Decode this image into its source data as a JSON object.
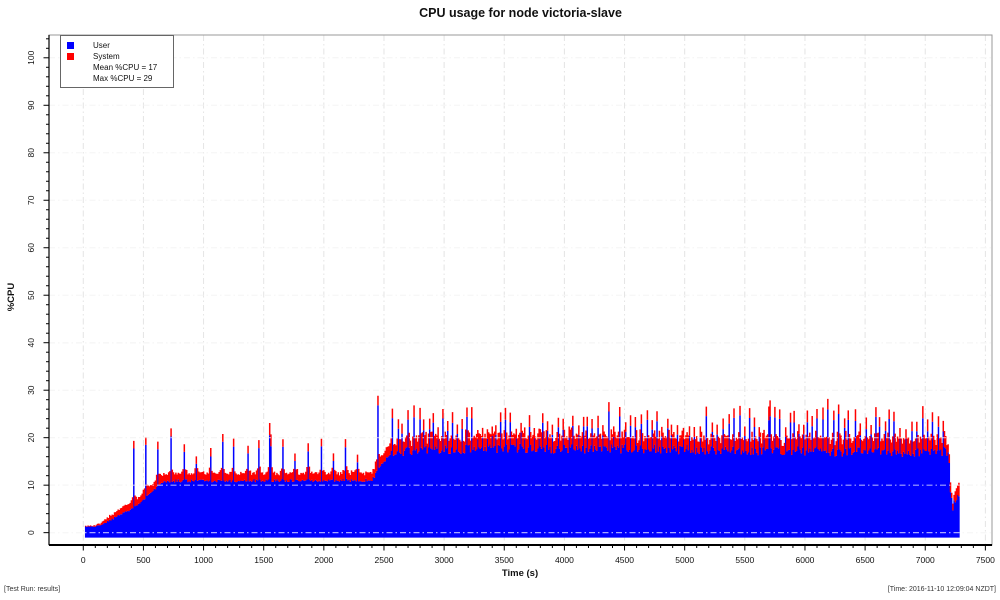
{
  "header": {
    "title": "CPU usage for node victoria-slave"
  },
  "footer": {
    "left": "[Test Run: results]",
    "right": "[Time: 2016-11-10 12:09:04 NZDT]"
  },
  "legend": {
    "items": [
      {
        "label": "User",
        "color": "#0000ff"
      },
      {
        "label": "System",
        "color": "#ff0000"
      }
    ],
    "stats": [
      "Mean %CPU = 17",
      "Max %CPU = 29"
    ]
  },
  "chart_data": {
    "type": "bar",
    "stacked": true,
    "title": "CPU usage for node victoria-slave",
    "xlabel": "Time (s)",
    "ylabel": "%CPU",
    "xlim": [
      -285,
      7555
    ],
    "ylim": [
      -2.6,
      104.8
    ],
    "x_major_ticks": [
      0,
      500,
      1000,
      1500,
      2000,
      2500,
      3000,
      3500,
      4000,
      4500,
      5000,
      5500,
      6000,
      6500,
      7000,
      7500
    ],
    "x_minor_step": 100,
    "y_major_ticks": [
      0,
      10,
      20,
      30,
      40,
      50,
      60,
      70,
      80,
      90,
      100
    ],
    "y_minor_step": 2,
    "y_minor_max": 104,
    "grid": {
      "color": "#e4e4e4",
      "overlay_color": "rgba(255,255,255,0.65)",
      "dash": [
        6,
        3,
        1.5,
        3
      ]
    },
    "series": [
      {
        "name": "User",
        "color": "#0000ff"
      },
      {
        "name": "System",
        "color": "#ff0000"
      }
    ],
    "mean_pct_cpu": 17,
    "max_pct_cpu": 29,
    "sample_interval_s": 10,
    "t_start": 20,
    "t_end": 7280,
    "envelope_points": [
      [
        20,
        1.2,
        0.15
      ],
      [
        120,
        1.4,
        0.2
      ],
      [
        200,
        2.3,
        0.8
      ],
      [
        300,
        3.7,
        1.2
      ],
      [
        400,
        5.0,
        1.4
      ],
      [
        480,
        6.4,
        1.5
      ],
      [
        560,
        8.3,
        1.5
      ],
      [
        630,
        10.0,
        1.6
      ],
      [
        670,
        10.9,
        1.5
      ],
      [
        2400,
        11.0,
        1.6
      ],
      [
        2465,
        13.8,
        1.9
      ],
      [
        2540,
        16.3,
        2.0
      ],
      [
        2750,
        17.3,
        2.0
      ],
      [
        3500,
        17.7,
        2.0
      ],
      [
        4500,
        17.7,
        2.0
      ],
      [
        5500,
        17.3,
        2.0
      ],
      [
        6400,
        17.0,
        2.0
      ],
      [
        6900,
        16.9,
        2.0
      ],
      [
        7195,
        17.2,
        2.0
      ],
      [
        7210,
        9.5,
        1.8
      ],
      [
        7230,
        5.5,
        1.3
      ],
      [
        7255,
        6.5,
        2.2
      ],
      [
        7280,
        7.5,
        2.6
      ]
    ],
    "noise_regions": [
      {
        "t_max": 650,
        "user": 0.2,
        "system": 0.15
      },
      {
        "t_max": 2550,
        "user": 0.35,
        "system": 0.3
      },
      {
        "t_max": 7300,
        "user": 1.0,
        "system": 0.55
      }
    ],
    "spike_trains": [
      {
        "start": 420,
        "end": 2350,
        "interval_s": 105,
        "jitter_s": 12,
        "total_min": 16.0,
        "total_max": 21.0,
        "system_tip": 1.6
      },
      {
        "start": 2570,
        "end": 7180,
        "interval_s": 42,
        "jitter_s": 10,
        "total_min": 21.5,
        "total_max": 26.5,
        "system_tip": 2.0
      }
    ],
    "big_spikes": [
      [
        1550,
        22.5
      ],
      [
        2445,
        28.8
      ],
      [
        5710,
        26.5
      ],
      [
        6280,
        27.0
      ]
    ],
    "spike_shoulder": [
      0.9,
      0.4
    ],
    "axis_color": "#000000",
    "box_color": "#999999"
  }
}
